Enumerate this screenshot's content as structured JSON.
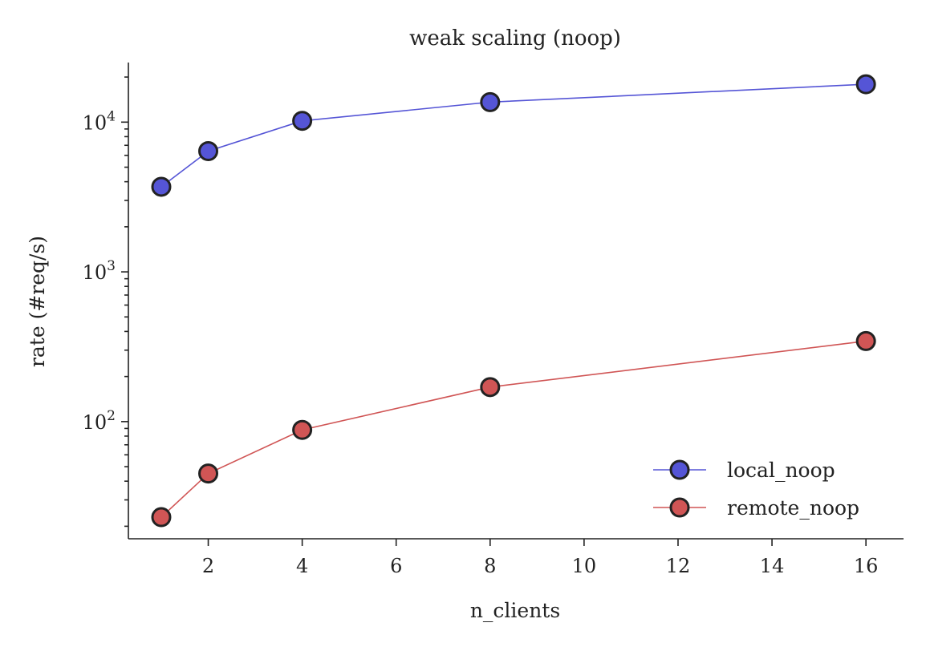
{
  "chart_data": {
    "type": "line",
    "title": "weak scaling (noop)",
    "xlabel": "n_clients",
    "ylabel": "rate (#req/s)",
    "x": [
      1,
      2,
      4,
      8,
      16
    ],
    "xlim": [
      0.3,
      16.8
    ],
    "xticks": [
      2,
      4,
      6,
      8,
      10,
      12,
      14,
      16
    ],
    "yscale": "log",
    "ylim": [
      16.5,
      25000
    ],
    "yticks": [
      100,
      1000,
      10000
    ],
    "ytick_labels": [
      {
        "base": "10",
        "exp": "2"
      },
      {
        "base": "10",
        "exp": "3"
      },
      {
        "base": "10",
        "exp": "4"
      }
    ],
    "grid": false,
    "legend_position": "lower-right",
    "series": [
      {
        "name": "local_noop",
        "color": "#5555d6",
        "values": [
          3700,
          6400,
          10200,
          13600,
          17900
        ]
      },
      {
        "name": "remote_noop",
        "color": "#d05555",
        "values": [
          23,
          45,
          88,
          170,
          345
        ]
      }
    ]
  }
}
